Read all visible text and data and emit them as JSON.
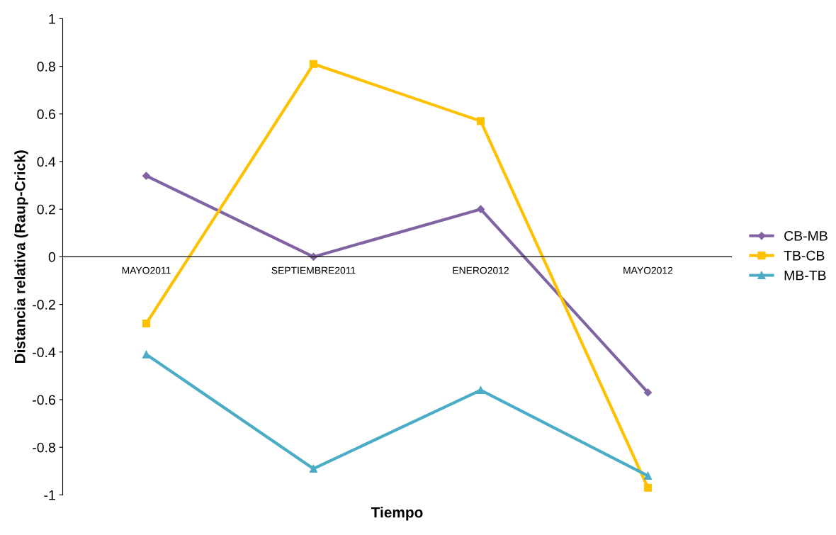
{
  "chart_data": {
    "type": "line",
    "xlabel": "Tiempo",
    "ylabel": "Distancia relativa (Raup-Crick)",
    "categories": [
      "MAYO2011",
      "SEPTIEMBRE2011",
      "ENERO2012",
      "MAYO2012"
    ],
    "series": [
      {
        "name": "CB-MB",
        "color": "#8064a2",
        "marker": "diamond",
        "values": [
          0.34,
          0.0,
          0.2,
          -0.57
        ]
      },
      {
        "name": "TB-CB",
        "color": "#ffc000",
        "marker": "square",
        "values": [
          -0.28,
          0.81,
          0.57,
          -0.97
        ]
      },
      {
        "name": "MB-TB",
        "color": "#4bacc6",
        "marker": "triangle",
        "values": [
          -0.41,
          -0.89,
          -0.56,
          -0.92
        ]
      }
    ],
    "ylim": [
      -1,
      1
    ],
    "yticks": [
      -1,
      -0.8,
      -0.6,
      -0.4,
      -0.2,
      0,
      0.2,
      0.4,
      0.6,
      0.8,
      1
    ],
    "grid": false,
    "legend": "right",
    "line_style": "solid"
  }
}
